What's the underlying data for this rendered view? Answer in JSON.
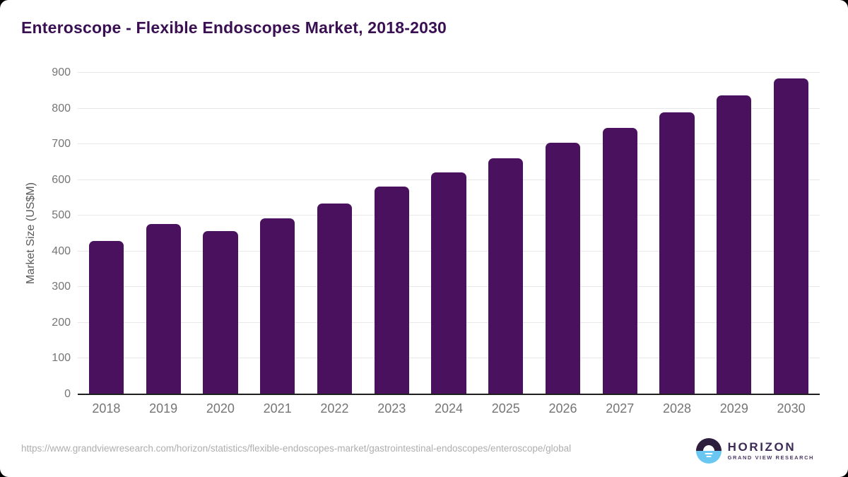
{
  "chart_data": {
    "type": "bar",
    "title": "Enteroscope - Flexible Endoscopes Market, 2018-2030",
    "xlabel": "",
    "ylabel": "Market Size (US$M)",
    "categories": [
      "2018",
      "2019",
      "2020",
      "2021",
      "2022",
      "2023",
      "2024",
      "2025",
      "2026",
      "2027",
      "2028",
      "2029",
      "2030"
    ],
    "values": [
      429,
      477,
      456,
      493,
      535,
      581,
      622,
      661,
      704,
      746,
      790,
      836,
      884
    ],
    "ylim": [
      0,
      900
    ],
    "ytick_step": 100,
    "grid": true,
    "legend": false,
    "bar_color": "#4a115e",
    "title_color": "#3a1053",
    "gridline_color": "#e8e8e8",
    "axis_line_color": "#1f1f1f",
    "tick_label_color": "#757575"
  },
  "footer": {
    "source_url": "https://www.grandviewresearch.com/horizon/statistics/flexible-endoscopes-market/gastrointestinal-endoscopes/enteroscope/global"
  },
  "logo": {
    "name": "HORIZON",
    "tagline": "GRAND VIEW RESEARCH",
    "colors": {
      "dark_half": "#2d1e3e",
      "blue_half": "#69c7f1",
      "text": "#3d2b57"
    }
  }
}
